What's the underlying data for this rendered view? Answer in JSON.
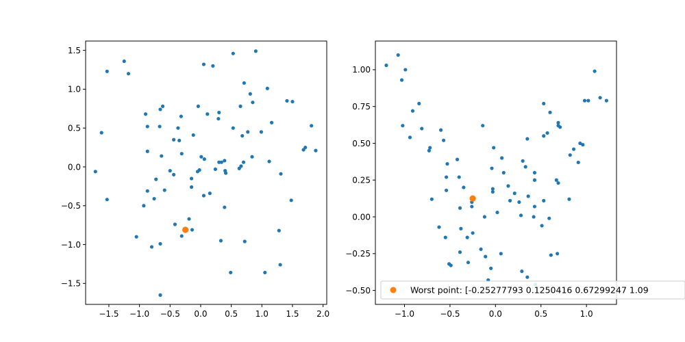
{
  "figure": {
    "background": "#ffffff"
  },
  "chart_data": [
    {
      "type": "scatter",
      "title": "",
      "xlabel": "",
      "ylabel": "",
      "xlim": [
        -1.88,
        2.06
      ],
      "ylim": [
        -1.77,
        1.62
      ],
      "xticks": [
        -1.5,
        -1.0,
        -0.5,
        0.0,
        0.5,
        1.0,
        1.5,
        2.0
      ],
      "xtick_labels": [
        "−1.5",
        "−1.0",
        "−0.5",
        "0.0",
        "0.5",
        "1.0",
        "1.5",
        "2.0"
      ],
      "yticks": [
        -1.5,
        -1.0,
        -0.5,
        0.0,
        0.5,
        1.0,
        1.5
      ],
      "ytick_labels": [
        "−1.5",
        "−1.0",
        "−0.5",
        "0.0",
        "0.5",
        "1.0",
        "1.5"
      ],
      "grid": false,
      "series": [
        {
          "color": "#1f77b4",
          "marker_size": "small",
          "points": [
            [
              -1.53,
              1.23
            ],
            [
              -1.25,
              1.36
            ],
            [
              -1.18,
              1.2
            ],
            [
              -1.62,
              0.44
            ],
            [
              -1.72,
              -0.06
            ],
            [
              -1.53,
              -0.42
            ],
            [
              -0.9,
              0.68
            ],
            [
              -0.87,
              0.52
            ],
            [
              -0.87,
              0.2
            ],
            [
              -0.66,
              0.74
            ],
            [
              -0.62,
              0.78
            ],
            [
              -0.67,
              0.52
            ],
            [
              -0.32,
              0.65
            ],
            [
              -0.37,
              0.5
            ],
            [
              -0.44,
              0.35
            ],
            [
              -0.64,
              0.14
            ],
            [
              -0.35,
              0.34
            ],
            [
              -0.31,
              0.17
            ],
            [
              -0.12,
              0.41
            ],
            [
              -0.04,
              0.78
            ],
            [
              0.05,
              1.32
            ],
            [
              0.2,
              1.3
            ],
            [
              0.11,
              0.68
            ],
            [
              0.3,
              0.7
            ],
            [
              0.29,
              0.62
            ],
            [
              0.01,
              0.13
            ],
            [
              0.06,
              0.1
            ],
            [
              -0.02,
              -0.04
            ],
            [
              -0.05,
              -0.06
            ],
            [
              -0.5,
              -0.05
            ],
            [
              -0.44,
              -0.1
            ],
            [
              -0.15,
              -0.15
            ],
            [
              -0.15,
              -0.26
            ],
            [
              -0.73,
              -0.16
            ],
            [
              -0.59,
              -0.3
            ],
            [
              -0.87,
              -0.31
            ],
            [
              -0.76,
              -0.41
            ],
            [
              -0.93,
              -0.5
            ],
            [
              0.05,
              -0.37
            ],
            [
              0.15,
              -0.34
            ],
            [
              0.24,
              -0.03
            ],
            [
              0.3,
              0.06
            ],
            [
              0.34,
              0.06
            ],
            [
              0.39,
              0.08
            ],
            [
              0.4,
              -0.05
            ],
            [
              0.41,
              -0.08
            ],
            [
              0.39,
              -0.52
            ],
            [
              -0.19,
              -0.67
            ],
            [
              -0.42,
              -0.74
            ],
            [
              -0.31,
              -0.89
            ],
            [
              -0.14,
              -0.81
            ],
            [
              -1.05,
              -0.9
            ],
            [
              -0.8,
              -1.03
            ],
            [
              -0.66,
              -0.99
            ],
            [
              0.33,
              -0.95
            ],
            [
              0.72,
              -0.96
            ],
            [
              0.49,
              -1.36
            ],
            [
              -0.66,
              -1.65
            ],
            [
              0.53,
              1.46
            ],
            [
              0.9,
              1.49
            ],
            [
              0.71,
              1.08
            ],
            [
              0.81,
              0.94
            ],
            [
              0.85,
              0.83
            ],
            [
              0.65,
              0.78
            ],
            [
              0.53,
              0.5
            ],
            [
              0.68,
              0.4
            ],
            [
              0.77,
              0.45
            ],
            [
              0.99,
              0.45
            ],
            [
              1.09,
              1.01
            ],
            [
              1.16,
              0.57
            ],
            [
              1.41,
              0.85
            ],
            [
              1.5,
              0.84
            ],
            [
              0.84,
              0.13
            ],
            [
              1.12,
              0.07
            ],
            [
              0.7,
              0.06
            ],
            [
              0.66,
              0.01
            ],
            [
              0.63,
              -0.02
            ],
            [
              1.31,
              -0.09
            ],
            [
              1.48,
              -0.43
            ],
            [
              1.81,
              0.53
            ],
            [
              1.71,
              0.25
            ],
            [
              1.68,
              0.22
            ],
            [
              1.88,
              0.21
            ],
            [
              1.28,
              -0.82
            ],
            [
              1.3,
              -1.26
            ],
            [
              1.05,
              -1.36
            ]
          ]
        },
        {
          "color": "#ff7f0e",
          "marker_size": "large",
          "points": [
            [
              -0.25,
              -0.81
            ]
          ]
        }
      ]
    },
    {
      "type": "scatter",
      "title": "",
      "xlabel": "",
      "ylabel": "",
      "xlim": [
        -1.32,
        1.33
      ],
      "ylim": [
        -0.595,
        1.195
      ],
      "xticks": [
        -1.0,
        -0.5,
        0.0,
        0.5,
        1.0
      ],
      "xtick_labels": [
        "−1.0",
        "−0.5",
        "0.0",
        "0.5",
        "1.0"
      ],
      "yticks": [
        -0.5,
        -0.25,
        0.0,
        0.25,
        0.5,
        0.75,
        1.0
      ],
      "ytick_labels": [
        "−0.50",
        "−0.25",
        "0.00",
        "0.25",
        "0.50",
        "0.75",
        "1.00"
      ],
      "grid": false,
      "legend": {
        "placement": "lower-right",
        "label": "Worst point: [-0.25277793  0.1250416   0.67299247  1.09",
        "color": "#ff7f0e"
      },
      "series": [
        {
          "color": "#1f77b4",
          "marker_size": "small",
          "points": [
            [
              -1.2,
              1.03
            ],
            [
              -1.07,
              1.1
            ],
            [
              -1.03,
              0.93
            ],
            [
              -0.99,
              1.0
            ],
            [
              -0.91,
              0.72
            ],
            [
              -0.84,
              0.77
            ],
            [
              -0.94,
              0.54
            ],
            [
              -1.02,
              0.62
            ],
            [
              -0.81,
              0.6
            ],
            [
              -0.72,
              0.47
            ],
            [
              -0.73,
              0.45
            ],
            [
              -0.6,
              0.59
            ],
            [
              -0.57,
              0.52
            ],
            [
              -0.53,
              0.36
            ],
            [
              -0.42,
              0.39
            ],
            [
              -0.54,
              0.27
            ],
            [
              -0.4,
              0.27
            ],
            [
              -0.54,
              0.18
            ],
            [
              -0.35,
              0.2
            ],
            [
              -0.14,
              0.62
            ],
            [
              -0.02,
              0.47
            ],
            [
              -0.04,
              0.33
            ],
            [
              0.07,
              0.4
            ],
            [
              0.09,
              0.3
            ],
            [
              0.3,
              0.38
            ],
            [
              0.35,
              0.53
            ],
            [
              0.33,
              0.34
            ],
            [
              0.43,
              0.3
            ],
            [
              0.43,
              0.25
            ],
            [
              0.53,
              0.77
            ],
            [
              0.6,
              0.71
            ],
            [
              0.69,
              0.64
            ],
            [
              0.69,
              0.62
            ],
            [
              0.71,
              0.61
            ],
            [
              0.57,
              0.57
            ],
            [
              0.53,
              0.55
            ],
            [
              0.93,
              0.5
            ],
            [
              0.96,
              0.49
            ],
            [
              0.86,
              0.46
            ],
            [
              0.82,
              0.42
            ],
            [
              0.91,
              0.37
            ],
            [
              0.67,
              0.25
            ],
            [
              0.69,
              0.23
            ],
            [
              0.98,
              0.79
            ],
            [
              1.02,
              0.79
            ],
            [
              1.09,
              0.99
            ],
            [
              1.15,
              0.81
            ],
            [
              1.22,
              0.79
            ],
            [
              0.81,
              0.12
            ],
            [
              0.53,
              0.11
            ],
            [
              0.43,
              0.07
            ],
            [
              -0.03,
              0.19
            ],
            [
              -0.03,
              0.17
            ],
            [
              0.14,
              0.21
            ],
            [
              0.21,
              0.16
            ],
            [
              0.16,
              0.11
            ],
            [
              0.36,
              0.14
            ],
            [
              0.26,
              0.1
            ],
            [
              -0.7,
              0.12
            ],
            [
              -0.26,
              0.1
            ],
            [
              -0.26,
              0.07
            ],
            [
              -0.39,
              0.06
            ],
            [
              -0.12,
              0.0
            ],
            [
              0.02,
              0.03
            ],
            [
              0.28,
              0.01
            ],
            [
              0.42,
              0.0
            ],
            [
              0.59,
              -0.01
            ],
            [
              0.51,
              -0.06
            ],
            [
              -0.62,
              -0.07
            ],
            [
              -0.38,
              -0.08
            ],
            [
              -0.25,
              -0.11
            ],
            [
              -0.31,
              -0.14
            ],
            [
              -0.55,
              -0.14
            ],
            [
              -0.16,
              -0.22
            ],
            [
              -0.11,
              -0.27
            ],
            [
              0.06,
              -0.25
            ],
            [
              -0.39,
              -0.24
            ],
            [
              -0.51,
              -0.32
            ],
            [
              -0.49,
              -0.33
            ],
            [
              -0.3,
              -0.31
            ],
            [
              -0.05,
              -0.35
            ],
            [
              -0.08,
              -0.43
            ],
            [
              0.29,
              -0.37
            ],
            [
              0.35,
              -0.41
            ],
            [
              0.44,
              -0.46
            ],
            [
              0.61,
              -0.26
            ],
            [
              0.68,
              -0.25
            ]
          ]
        },
        {
          "color": "#ff7f0e",
          "marker_size": "large",
          "points": [
            [
              -0.25,
              0.125
            ]
          ]
        }
      ]
    }
  ]
}
